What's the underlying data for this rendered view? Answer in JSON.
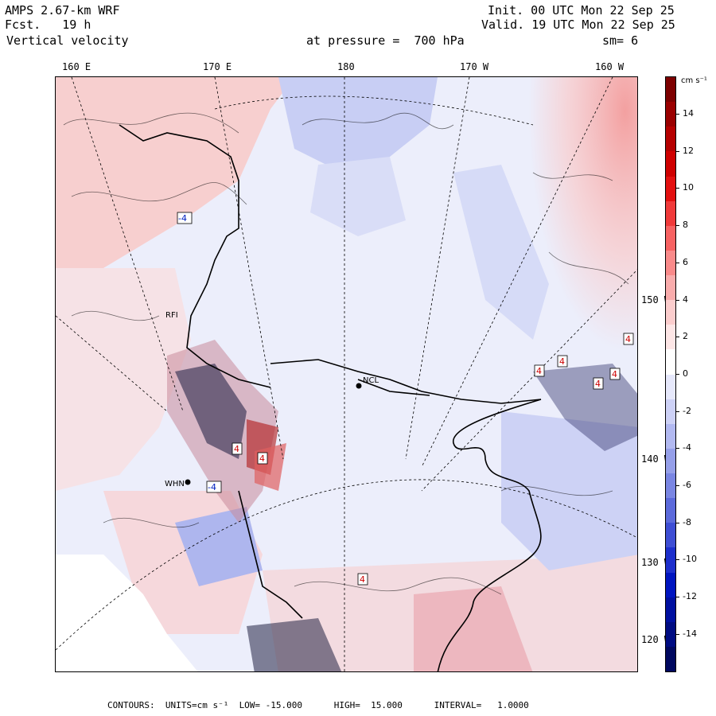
{
  "header": {
    "model": "AMPS 2.67-km WRF",
    "forecast": "Fcst.   19 h",
    "field": "Vertical velocity",
    "init": "Init. 00 UTC Mon 22 Sep 25",
    "valid": "Valid. 19 UTC Mon 22 Sep 25",
    "pressure": "at pressure =  700 hPa",
    "smoothing": "sm= 6"
  },
  "longitude_labels": [
    "160 E",
    "170 E",
    "180",
    "170 W",
    "160 W"
  ],
  "latitude_labels": [
    "150 W",
    "140 W",
    "130 W",
    "120 W"
  ],
  "colorbar": {
    "units": "cm s⁻¹",
    "tick_labels": [
      "14",
      "12",
      "10",
      "8",
      "6",
      "4",
      "2",
      "0",
      "-2",
      "-4",
      "-6",
      "-8",
      "-10",
      "-12",
      "-14"
    ],
    "colors": [
      "#7d0000",
      "#9a0000",
      "#b50000",
      "#cf0000",
      "#e31010",
      "#f03a3a",
      "#f76262",
      "#f98a8a",
      "#f9acac",
      "#fbcdcd",
      "#fde6e6",
      "#ffffff",
      "#e6e8fb",
      "#cdd1f6",
      "#b2b9f1",
      "#959fe9",
      "#7a86e3",
      "#5c6adb",
      "#3e4ed4",
      "#1d2fcc",
      "#0015c0",
      "#0010a0",
      "#000c82",
      "#00085f"
    ]
  },
  "stations": [
    "NCL",
    "WHN",
    "RFI"
  ],
  "contour_labels": [
    "4",
    "4",
    "4",
    "4",
    "4",
    "4",
    "4",
    "4",
    "-4",
    "-4"
  ],
  "footer": {
    "text": "CONTOURS:  UNITS=cm s⁻¹  LOW= -15.000      HIGH=  15.000      INTERVAL=   1.0000"
  }
}
